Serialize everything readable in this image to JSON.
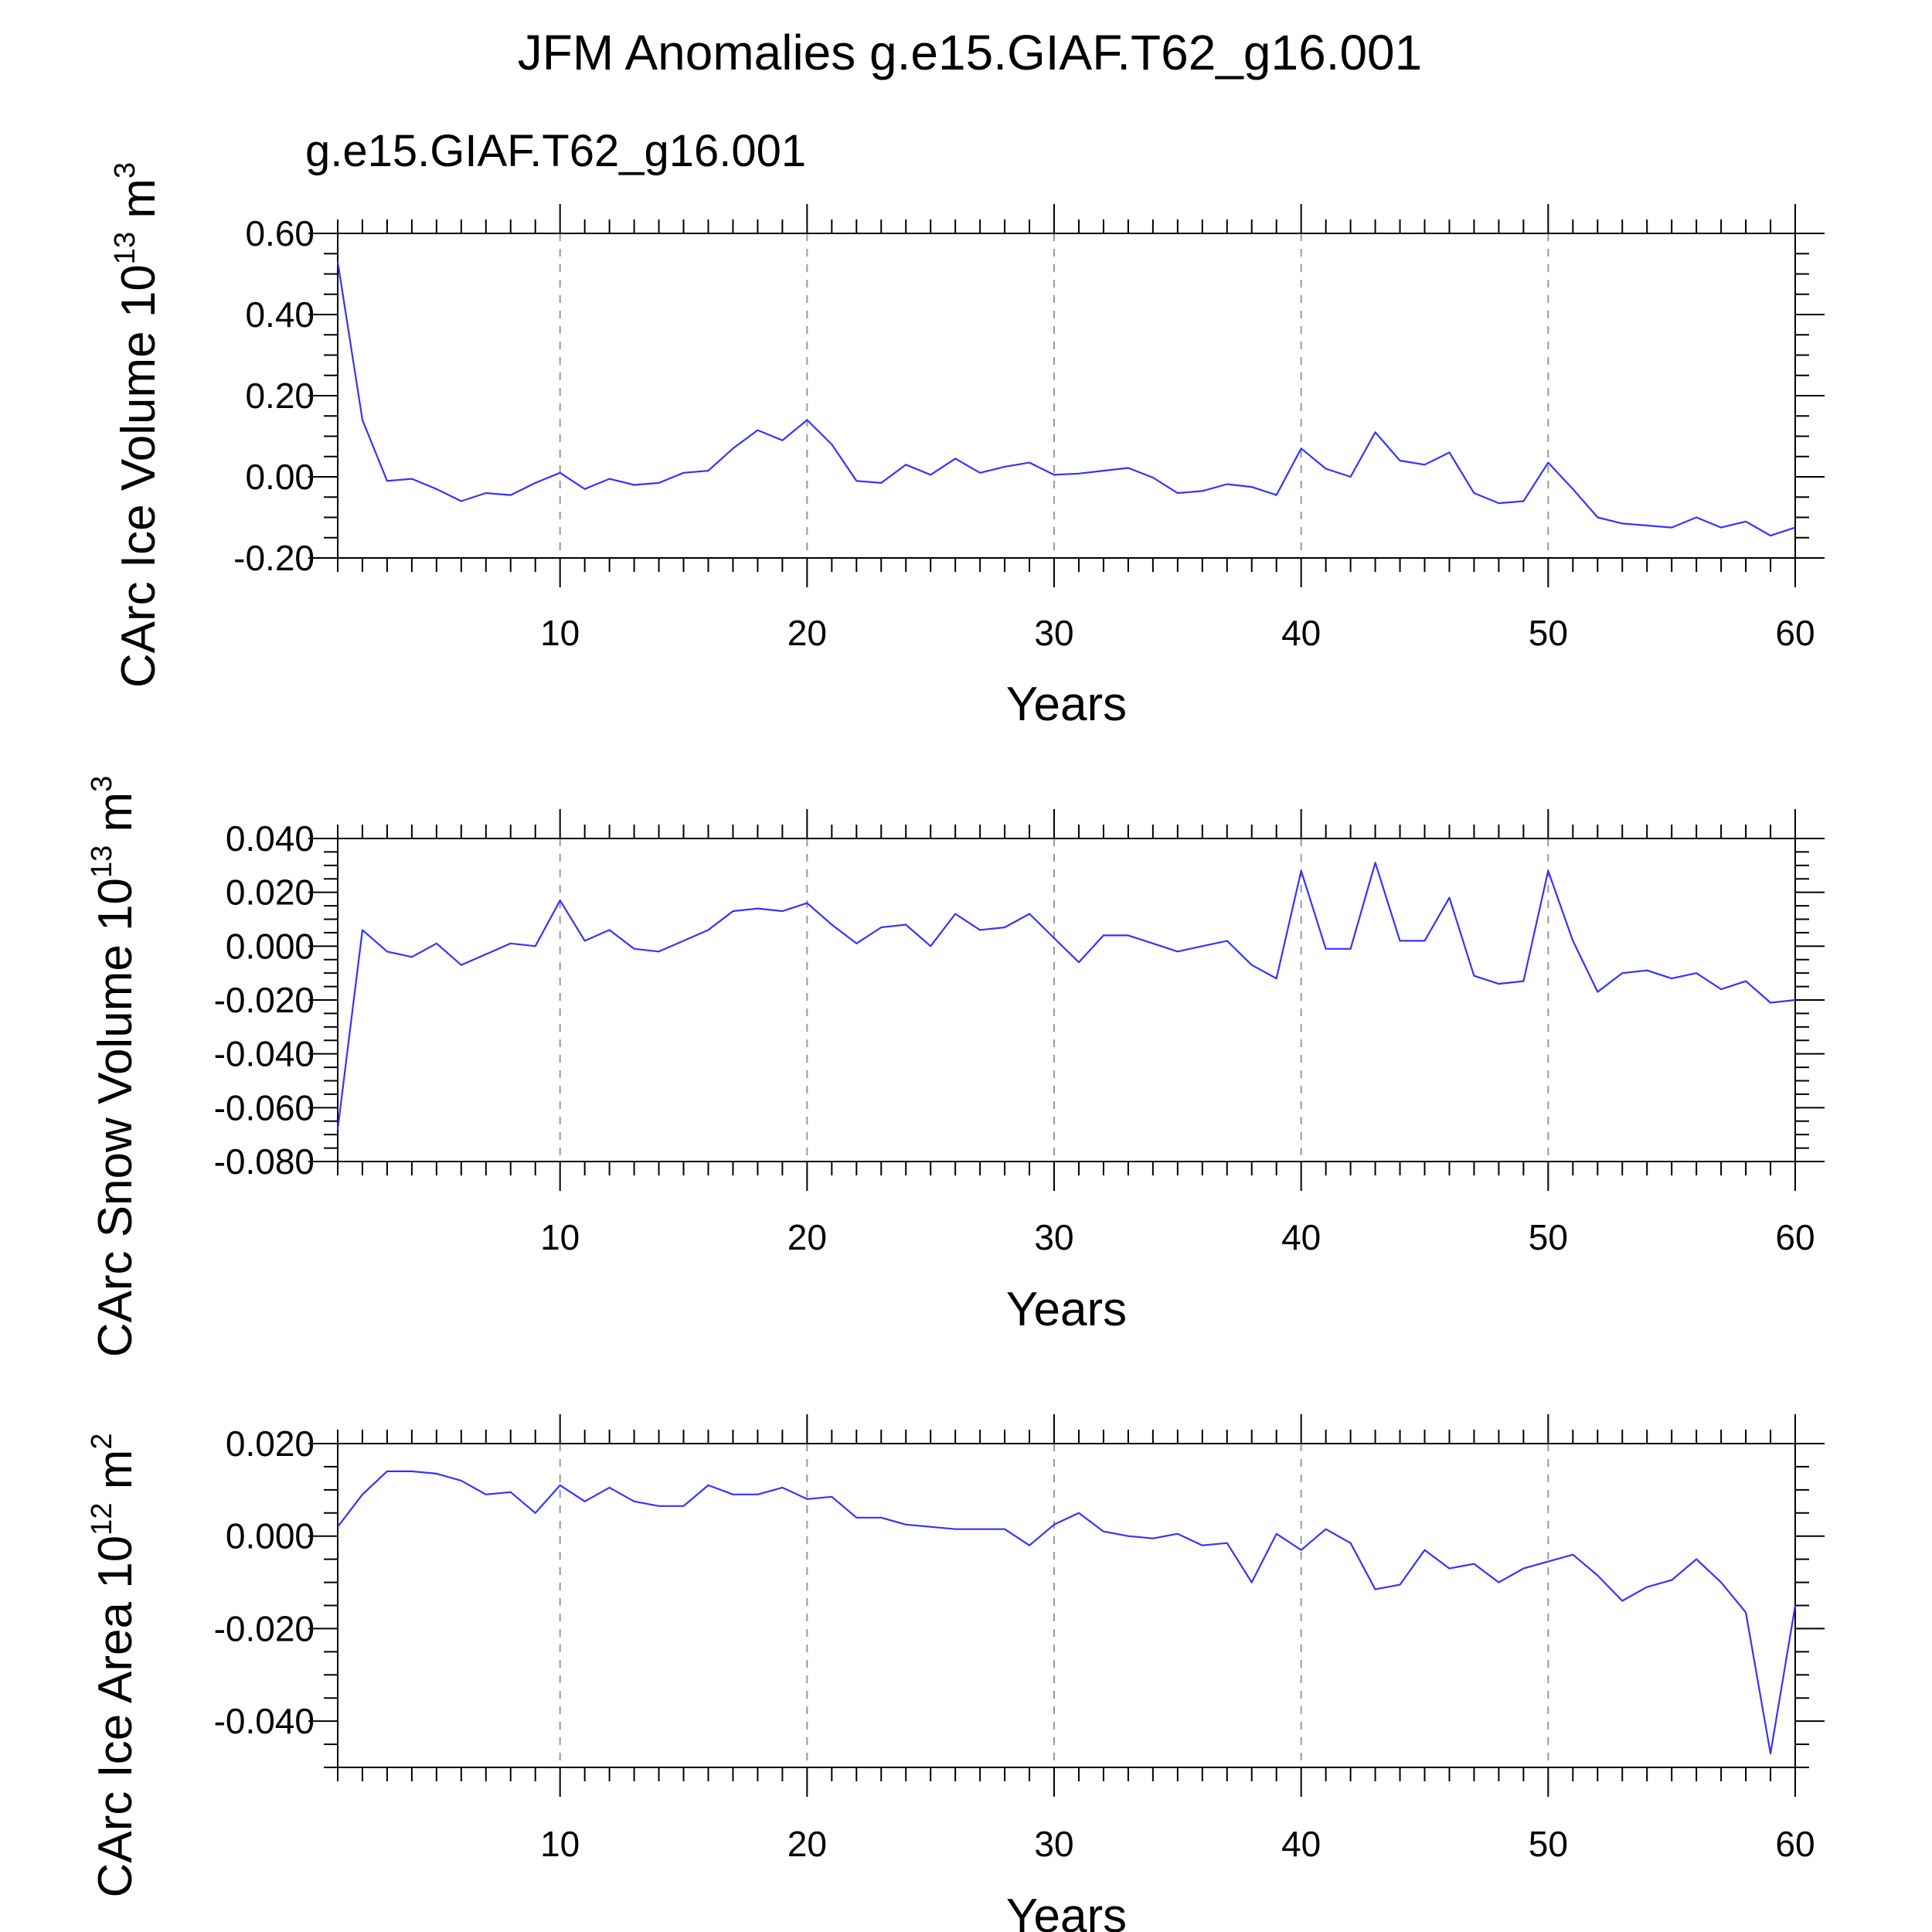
{
  "figure": {
    "title": "JFM Anomalies g.e15.GIAF.T62_g16.001",
    "subtitle": "g.e15.GIAF.T62_g16.001",
    "subtitle_color": "#0000ff"
  },
  "colors": {
    "line": "#3333ff",
    "axis": "#000000",
    "grid": "#999999"
  },
  "chart_data": [
    {
      "type": "line",
      "ylabel": "CArc Ice Volume",
      "yunit": {
        "base": "10",
        "exp": "13",
        "unit": "m",
        "unit_exp": "3"
      },
      "xlabel": "Years",
      "xlim": [
        1,
        60
      ],
      "ylim": [
        -0.2,
        0.6
      ],
      "xticks": [
        10,
        20,
        30,
        40,
        50,
        60
      ],
      "yticks": [
        -0.2,
        0.0,
        0.2,
        0.4,
        0.6
      ],
      "yticklabels": [
        "-0.20",
        "0.00",
        "0.20",
        "0.40",
        "0.60"
      ],
      "yminor": 0.05,
      "grid_x": true,
      "x": [
        1,
        2,
        3,
        4,
        5,
        6,
        7,
        8,
        9,
        10,
        11,
        12,
        13,
        14,
        15,
        16,
        17,
        18,
        19,
        20,
        21,
        22,
        23,
        24,
        25,
        26,
        27,
        28,
        29,
        30,
        31,
        32,
        33,
        34,
        35,
        36,
        37,
        38,
        39,
        40,
        41,
        42,
        43,
        44,
        45,
        46,
        47,
        48,
        49,
        50,
        51,
        52,
        53,
        54,
        55,
        56,
        57,
        58,
        59,
        60
      ],
      "series": [
        {
          "values": [
            0.53,
            0.14,
            -0.01,
            -0.005,
            -0.03,
            -0.06,
            -0.04,
            -0.045,
            -0.015,
            0.01,
            -0.03,
            -0.005,
            -0.02,
            -0.015,
            0.01,
            0.015,
            0.07,
            0.115,
            0.09,
            0.14,
            0.08,
            -0.01,
            -0.015,
            0.03,
            0.005,
            0.045,
            0.01,
            0.025,
            0.035,
            0.005,
            0.008,
            0.015,
            0.022,
            -0.002,
            -0.04,
            -0.035,
            -0.018,
            -0.025,
            -0.045,
            0.07,
            0.02,
            0.0,
            0.11,
            0.04,
            0.03,
            0.06,
            -0.04,
            -0.065,
            -0.06,
            0.035,
            -0.03,
            -0.1,
            -0.115,
            -0.12,
            -0.125,
            -0.1,
            -0.125,
            -0.11,
            -0.145,
            -0.125
          ]
        }
      ]
    },
    {
      "type": "line",
      "ylabel": "CArc Snow Volume",
      "yunit": {
        "base": "10",
        "exp": "13",
        "unit": "m",
        "unit_exp": "3"
      },
      "xlabel": "Years",
      "xlim": [
        1,
        60
      ],
      "ylim": [
        -0.08,
        0.04
      ],
      "xticks": [
        10,
        20,
        30,
        40,
        50,
        60
      ],
      "yticks": [
        -0.08,
        -0.06,
        -0.04,
        -0.02,
        0.0,
        0.02,
        0.04
      ],
      "yticklabels": [
        "-0.080",
        "-0.060",
        "-0.040",
        "-0.020",
        "0.000",
        "0.020",
        "0.040"
      ],
      "yminor": 0.005,
      "grid_x": true,
      "x": [
        1,
        2,
        3,
        4,
        5,
        6,
        7,
        8,
        9,
        10,
        11,
        12,
        13,
        14,
        15,
        16,
        17,
        18,
        19,
        20,
        21,
        22,
        23,
        24,
        25,
        26,
        27,
        28,
        29,
        30,
        31,
        32,
        33,
        34,
        35,
        36,
        37,
        38,
        39,
        40,
        41,
        42,
        43,
        44,
        45,
        46,
        47,
        48,
        49,
        50,
        51,
        52,
        53,
        54,
        55,
        56,
        57,
        58,
        59,
        60
      ],
      "series": [
        {
          "values": [
            -0.068,
            0.006,
            -0.002,
            -0.004,
            0.001,
            -0.007,
            -0.003,
            0.001,
            0.0,
            0.017,
            0.002,
            0.006,
            -0.001,
            -0.002,
            0.002,
            0.006,
            0.013,
            0.014,
            0.013,
            0.016,
            0.008,
            0.001,
            0.007,
            0.008,
            0.0,
            0.012,
            0.006,
            0.007,
            0.012,
            0.003,
            -0.006,
            0.004,
            0.004,
            0.001,
            -0.002,
            0.0,
            0.002,
            -0.007,
            -0.012,
            0.028,
            -0.001,
            -0.001,
            0.031,
            0.002,
            0.002,
            0.018,
            -0.011,
            -0.014,
            -0.013,
            0.028,
            0.002,
            -0.017,
            -0.01,
            -0.009,
            -0.012,
            -0.01,
            -0.016,
            -0.013,
            -0.021,
            -0.02
          ]
        }
      ]
    },
    {
      "type": "line",
      "ylabel": "CArc Ice Area",
      "yunit": {
        "base": "10",
        "exp": "12",
        "unit": "m",
        "unit_exp": "2"
      },
      "xlabel": "Years",
      "xlim": [
        1,
        60
      ],
      "ylim": [
        -0.05,
        0.02
      ],
      "xticks": [
        10,
        20,
        30,
        40,
        50,
        60
      ],
      "yticks": [
        -0.04,
        -0.02,
        0.0,
        0.02
      ],
      "yticklabels": [
        "-0.040",
        "-0.020",
        "0.000",
        "0.020"
      ],
      "yminor": 0.005,
      "grid_x": true,
      "x": [
        1,
        2,
        3,
        4,
        5,
        6,
        7,
        8,
        9,
        10,
        11,
        12,
        13,
        14,
        15,
        16,
        17,
        18,
        19,
        20,
        21,
        22,
        23,
        24,
        25,
        26,
        27,
        28,
        29,
        30,
        31,
        32,
        33,
        34,
        35,
        36,
        37,
        38,
        39,
        40,
        41,
        42,
        43,
        44,
        45,
        46,
        47,
        48,
        49,
        50,
        51,
        52,
        53,
        54,
        55,
        56,
        57,
        58,
        59,
        60
      ],
      "series": [
        {
          "values": [
            0.002,
            0.009,
            0.014,
            0.014,
            0.0135,
            0.012,
            0.009,
            0.0095,
            0.005,
            0.011,
            0.0075,
            0.0105,
            0.0075,
            0.0065,
            0.0065,
            0.011,
            0.009,
            0.009,
            0.0105,
            0.008,
            0.0085,
            0.004,
            0.004,
            0.0025,
            0.002,
            0.0015,
            0.0015,
            0.0015,
            -0.002,
            0.0025,
            0.005,
            0.001,
            0.0,
            -0.0005,
            0.0005,
            -0.002,
            -0.0015,
            -0.01,
            0.0005,
            -0.003,
            0.0015,
            -0.0015,
            -0.0115,
            -0.0105,
            -0.003,
            -0.007,
            -0.006,
            -0.01,
            -0.007,
            -0.0055,
            -0.004,
            -0.0085,
            -0.014,
            -0.011,
            -0.0095,
            -0.005,
            -0.01,
            -0.0165,
            -0.047,
            -0.015
          ]
        }
      ]
    }
  ]
}
